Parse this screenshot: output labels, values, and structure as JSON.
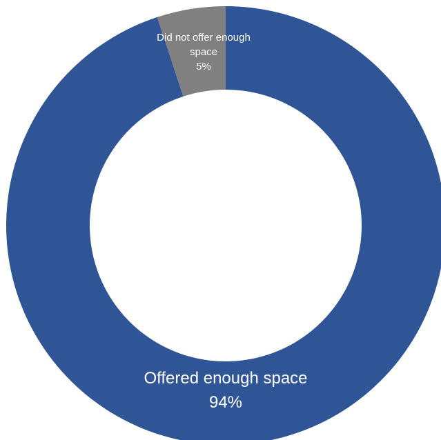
{
  "chart_data": {
    "type": "pie",
    "donut": true,
    "title": "",
    "start": "12 o'clock",
    "direction": "clockwise",
    "slices": [
      {
        "name": "Offered enough space",
        "label_lines": [
          "Offered enough space",
          "94%"
        ],
        "value": 94,
        "color": "#2f5597"
      },
      {
        "name": "Did not offer enough space",
        "label_lines": [
          "Did not offer enough",
          "space",
          "5%"
        ],
        "value": 5,
        "color": "#808080"
      }
    ]
  }
}
